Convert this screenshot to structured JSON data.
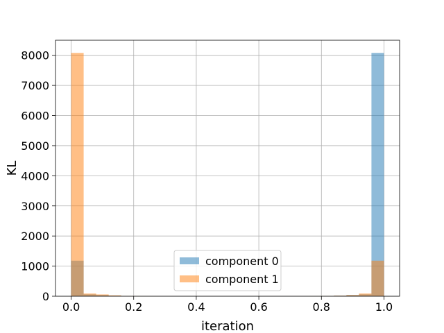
{
  "chart_data": {
    "type": "bar",
    "subtype": "overlapping-histogram",
    "title": "",
    "xlabel": "iteration",
    "ylabel": "KL",
    "xlim": [
      -0.05,
      1.05
    ],
    "ylim": [
      0,
      8500
    ],
    "grid": true,
    "legend_position": "lower-center",
    "x_ticks": [
      "0.0",
      "0.2",
      "0.4",
      "0.6",
      "0.8",
      "1.0"
    ],
    "y_ticks": [
      "0",
      "1000",
      "2000",
      "3000",
      "4000",
      "5000",
      "6000",
      "7000",
      "8000"
    ],
    "bin_edges": [
      0.0,
      0.04,
      0.08,
      0.12,
      0.16,
      0.2,
      0.24,
      0.28,
      0.32,
      0.36,
      0.4,
      0.44,
      0.48,
      0.52,
      0.56,
      0.6,
      0.64,
      0.68,
      0.72,
      0.76,
      0.8,
      0.84,
      0.88,
      0.92,
      0.96,
      1.0
    ],
    "series": [
      {
        "name": "component 0",
        "color": "#1f77b4",
        "values": [
          1180,
          60,
          40,
          20,
          10,
          8,
          6,
          5,
          5,
          5,
          5,
          5,
          5,
          5,
          5,
          5,
          5,
          5,
          5,
          8,
          10,
          20,
          40,
          60,
          8080
        ]
      },
      {
        "name": "component 1",
        "color": "#ff7f0e",
        "values": [
          8080,
          90,
          60,
          30,
          10,
          8,
          6,
          5,
          5,
          5,
          5,
          5,
          5,
          5,
          5,
          5,
          5,
          5,
          5,
          8,
          10,
          20,
          40,
          90,
          1180
        ]
      }
    ],
    "opacity": 0.5
  }
}
